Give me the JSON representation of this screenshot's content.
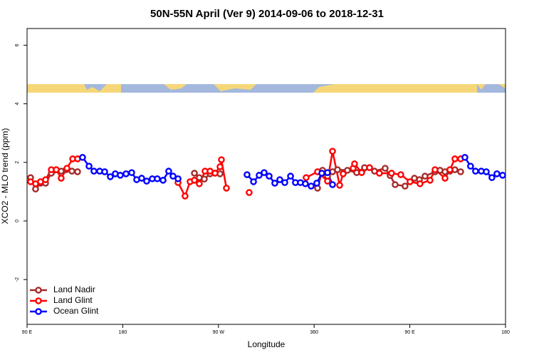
{
  "chart_data": {
    "type": "line",
    "title": "50N-55N April (Ver 9)   2014-09-06 to 2018-12-31",
    "x_label": "Longitude",
    "y_label": "XCO2 - MLO trend (ppm)",
    "xlim": [
      90,
      540
    ],
    "ylim": [
      -3.53,
      6.57
    ],
    "xticks": [
      {
        "value": 90,
        "label": "90 E"
      },
      180,
      {
        "value": 270,
        "label": "90 W"
      },
      360,
      {
        "value": 450,
        "label": "90 E"
      },
      {
        "value": 540,
        "label": "180"
      }
    ],
    "yticks": [
      -2,
      0,
      2,
      4,
      6
    ],
    "legend": "bottom-left",
    "series": [
      {
        "name": "Land Nadir",
        "color": "#a52a2a",
        "x": [
          93.3,
          98.0,
          102.7,
          107.4,
          112.8,
          122.1,
          126.8,
          132.2,
          137.5,
          null,
          247.4,
          252.0,
          256.7,
          262.1,
          271.5,
          null,
          363.2,
          367.9,
          372.6,
          377.3,
          382.0,
          391.3,
          400.0,
          407.4,
          416.8,
          426.8,
          431.5,
          436.2,
          445.5,
          454.3,
          459.0,
          464.3,
          473.7,
          478.4,
          483.1,
          487.7,
          492.4,
          497.8
        ],
        "values": [
          1.48,
          1.09,
          1.29,
          1.29,
          1.63,
          1.7,
          1.75,
          1.7,
          1.68,
          null,
          1.63,
          1.48,
          1.43,
          1.61,
          1.61,
          null,
          1.12,
          1.73,
          1.53,
          1.68,
          1.75,
          1.73,
          1.65,
          1.82,
          1.7,
          1.8,
          1.55,
          1.24,
          1.19,
          1.46,
          1.41,
          1.53,
          1.68,
          1.73,
          1.68,
          1.7,
          1.75,
          1.68
        ]
      },
      {
        "name": "Land Glint",
        "color": "#ff0000",
        "x": [
          93.3,
          98.0,
          102.7,
          107.4,
          112.8,
          117.5,
          122.1,
          127.5,
          132.9,
          137.5,
          null,
          232.0,
          238.6,
          243.3,
          247.4,
          252.0,
          257.4,
          262.1,
          266.8,
          271.5,
          272.8,
          277.5,
          null,
          298.9,
          null,
          352.5,
          363.2,
          372.6,
          377.3,
          384.0,
          387.3,
          396.7,
          398.0,
          404.7,
          412.1,
          421.4,
          432.8,
          441.5,
          450.2,
          459.6,
          469.0,
          473.7,
          483.1,
          487.7,
          492.4,
          497.8
        ],
        "values": [
          1.34,
          1.27,
          1.34,
          1.41,
          1.75,
          1.75,
          1.46,
          1.8,
          2.12,
          2.12,
          null,
          1.31,
          0.85,
          1.34,
          1.39,
          1.27,
          1.7,
          1.7,
          1.63,
          1.85,
          2.09,
          1.12,
          null,
          0.97,
          null,
          1.48,
          1.68,
          1.36,
          2.38,
          1.22,
          1.61,
          1.8,
          1.95,
          1.65,
          1.82,
          1.63,
          1.63,
          1.58,
          1.34,
          1.27,
          1.39,
          1.75,
          1.46,
          1.75,
          2.12,
          2.12
        ]
      },
      {
        "name": "Ocean Glint",
        "color": "#0000ff",
        "x": [
          142.2,
          148.3,
          152.9,
          158.3,
          163.0,
          168.3,
          173.0,
          177.7,
          183.1,
          188.4,
          193.1,
          197.8,
          202.5,
          207.8,
          212.5,
          217.9,
          223.2,
          227.3,
          232.0,
          null,
          296.9,
          303.0,
          308.3,
          313.0,
          317.7,
          323.0,
          327.7,
          332.4,
          337.8,
          342.4,
          347.1,
          351.8,
          357.2,
          362.5,
          367.2,
          372.6,
          377.3,
          null,
          501.8,
          507.1,
          511.8,
          517.2,
          521.9,
          527.2,
          531.9,
          537.3
        ],
        "values": [
          2.17,
          1.87,
          1.7,
          1.7,
          1.68,
          1.51,
          1.61,
          1.56,
          1.61,
          1.65,
          1.41,
          1.46,
          1.36,
          1.44,
          1.44,
          1.39,
          1.7,
          1.53,
          1.44,
          null,
          1.58,
          1.34,
          1.56,
          1.65,
          1.53,
          1.29,
          1.41,
          1.31,
          1.53,
          1.31,
          1.31,
          1.27,
          1.19,
          1.29,
          1.63,
          1.65,
          1.24,
          null,
          2.17,
          1.87,
          1.7,
          1.7,
          1.68,
          1.48,
          1.61,
          1.56
        ]
      }
    ]
  }
}
